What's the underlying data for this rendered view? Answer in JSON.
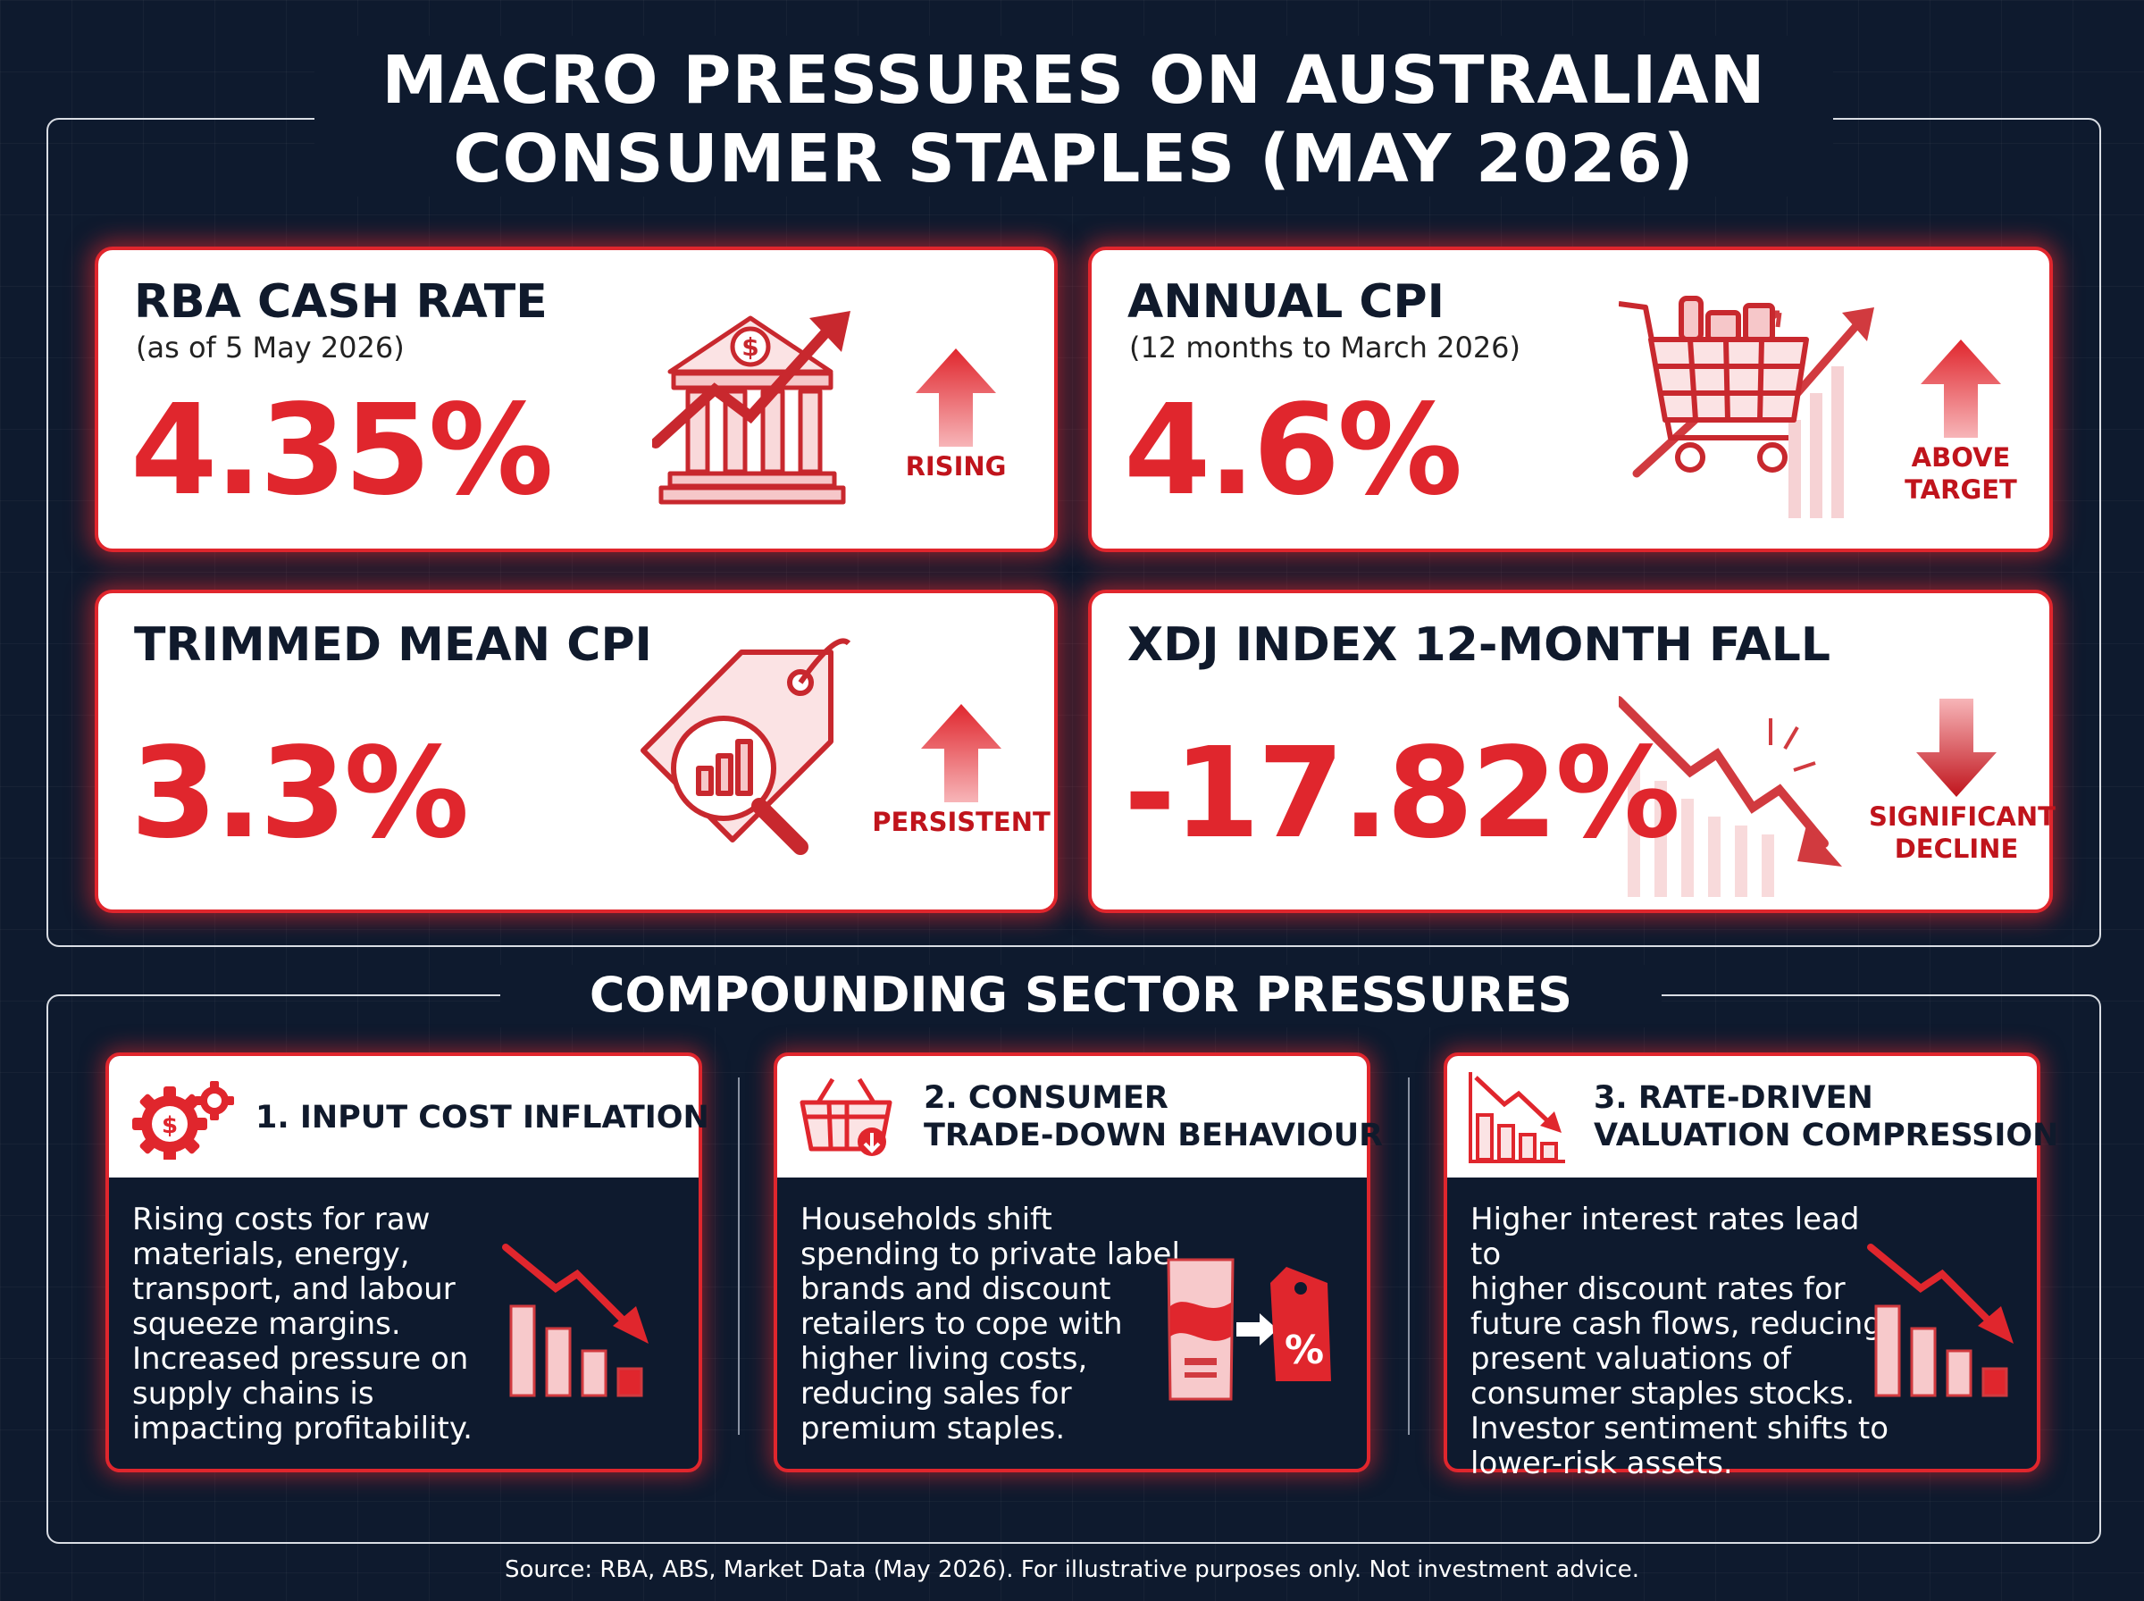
{
  "title": {
    "line1": "MACRO PRESSURES ON AUSTRALIAN",
    "line2": "CONSUMER STAPLES (MAY 2026)"
  },
  "metrics": {
    "rba": {
      "title": "RBA CASH RATE",
      "subtitle": "(as of 5 May 2026)",
      "value": "4.35%",
      "trend": "RISING",
      "trend_dir": "up",
      "icon": "bank-chart-icon"
    },
    "cpi": {
      "title": "ANNUAL CPI",
      "subtitle": "(12 months to March 2026)",
      "value": "4.6%",
      "trend_line1": "ABOVE",
      "trend_line2": "TARGET",
      "trend_dir": "up",
      "icon": "shopping-cart-icon"
    },
    "trimmed": {
      "title": "TRIMMED MEAN CPI",
      "value": "3.3%",
      "trend": "PERSISTENT",
      "trend_dir": "up",
      "icon": "price-tag-magnifier-icon"
    },
    "xdj": {
      "title": "XDJ INDEX 12-MONTH FALL",
      "value": "-17.82%",
      "trend_line1": "SIGNIFICANT",
      "trend_line2": "DECLINE",
      "trend_dir": "down",
      "icon": "falling-chart-icon"
    }
  },
  "section_title": "COMPOUNDING SECTOR PRESSURES",
  "pressures": [
    {
      "title_line1": "1. INPUT COST INFLATION",
      "title_line2": "",
      "body": "Rising costs for raw\nmaterials, energy,\ntransport, and labour\nsqueeze margins.\nIncreased pressure on\nsupply chains is\nimpacting profitability.",
      "icon": "dollar-gears-icon",
      "body_icon": "declining-bars-icon"
    },
    {
      "title_line1": "2. CONSUMER",
      "title_line2": "TRADE-DOWN BEHAVIOUR",
      "body": "Households shift\nspending to private label\nbrands and discount\nretailers to cope with\nhigher living costs,\nreducing sales for\npremium staples.",
      "icon": "basket-down-icon",
      "body_icon": "product-discount-tag-icon",
      "body_icon_text": "%"
    },
    {
      "title_line1": "3. RATE-DRIVEN",
      "title_line2": "VALUATION COMPRESSION",
      "body": "Higher interest rates lead to\nhigher discount rates for\nfuture cash flows, reducing\npresent valuations of\nconsumer staples stocks.\nInvestor sentiment shifts to\nlower-risk assets.",
      "icon": "falling-bars-icon",
      "body_icon": "declining-bars-icon"
    }
  ],
  "footer": "Source: RBA, ABS, Market Data (May 2026). For illustrative purposes only. Not investment advice.",
  "colors": {
    "accent": "#e0262d",
    "background": "#0e1a2e",
    "dark_text": "#101a2c"
  }
}
